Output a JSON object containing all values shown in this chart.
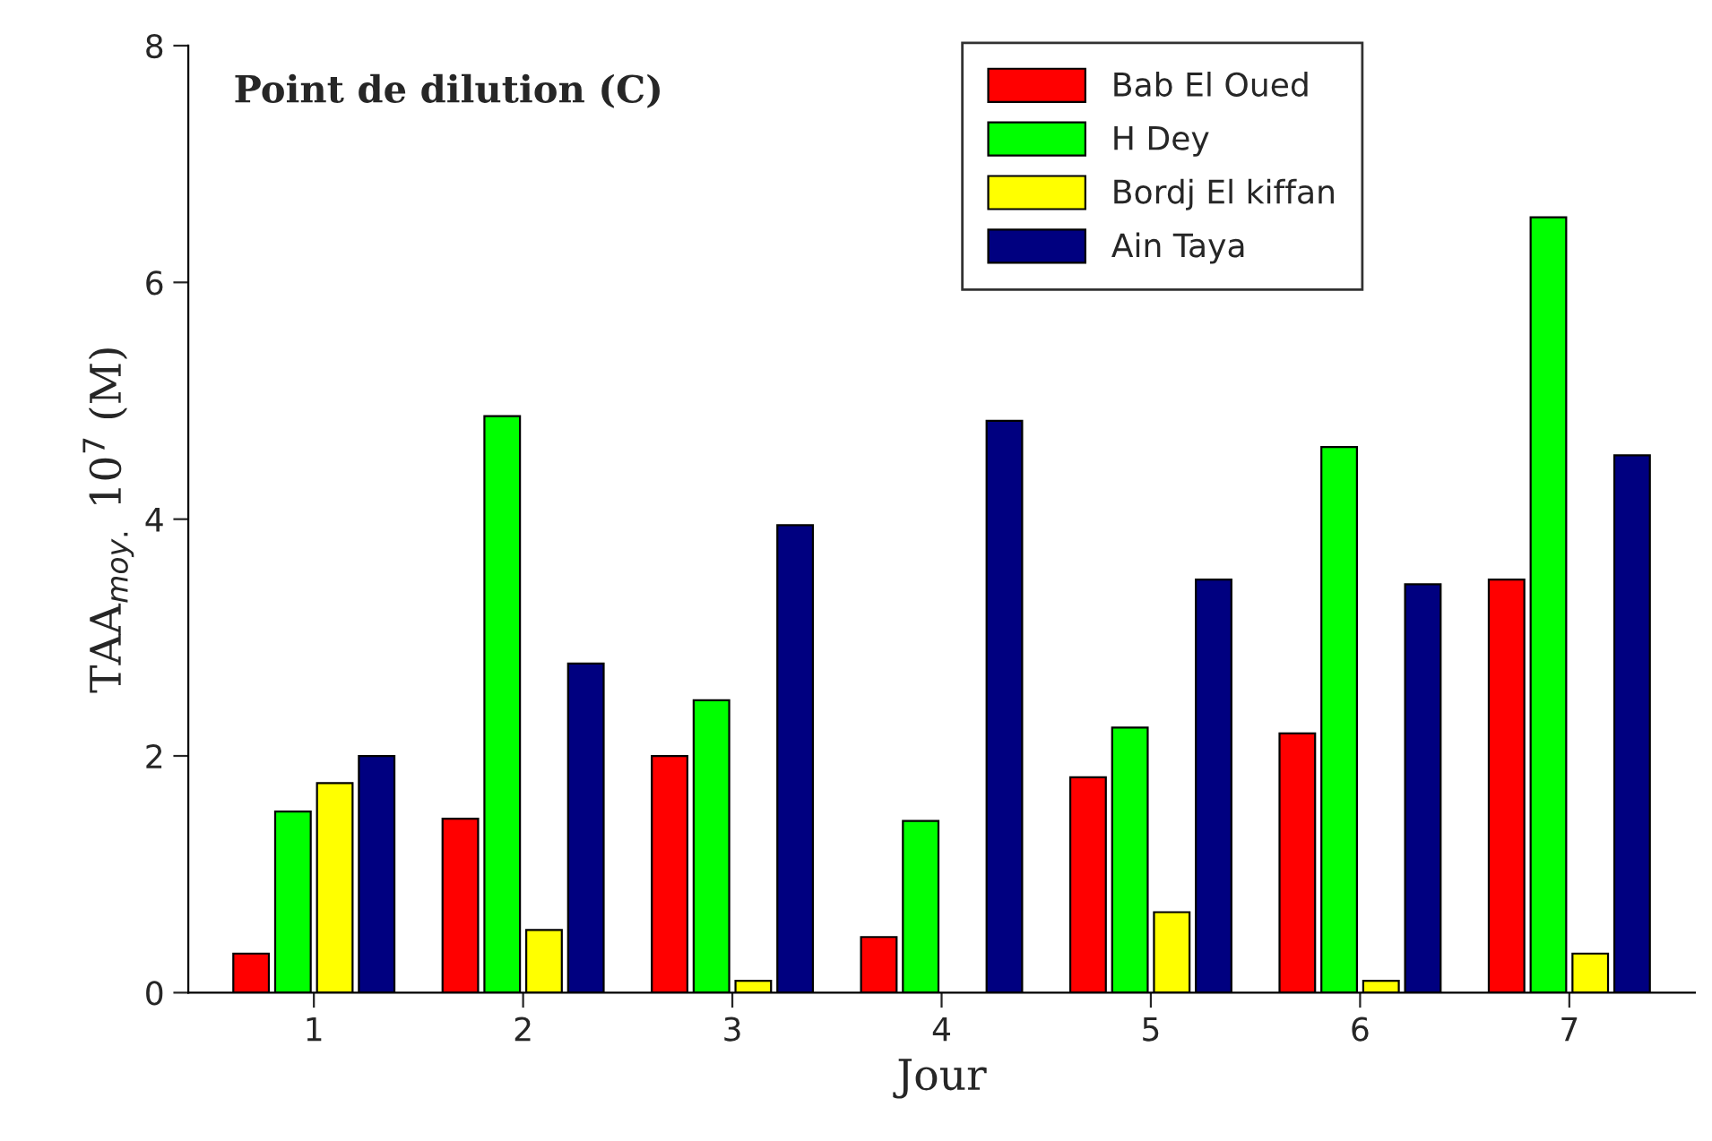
{
  "chart_data": {
    "type": "bar",
    "title": "Point de dilution (C)",
    "xlabel": "Jour",
    "ylabel": "TAA$_{moy.}$ 10$^{7}$ (M)",
    "categories": [
      "1",
      "2",
      "3",
      "4",
      "5",
      "6",
      "7"
    ],
    "series": [
      {
        "name": "Bab El Oued",
        "color": "#ff0000",
        "values": [
          0.33,
          1.47,
          2.0,
          0.47,
          1.82,
          2.19,
          3.49
        ]
      },
      {
        "name": "H Dey",
        "color": "#00ff00",
        "values": [
          1.53,
          4.87,
          2.47,
          1.45,
          2.24,
          4.61,
          6.55
        ]
      },
      {
        "name": "Bordj El kiffan",
        "color": "#ffff00",
        "values": [
          1.77,
          0.53,
          0.1,
          null,
          0.68,
          0.1,
          0.33
        ]
      },
      {
        "name": "Ain Taya",
        "color": "#000080",
        "values": [
          2.0,
          2.78,
          3.95,
          4.83,
          3.49,
          3.45,
          4.54
        ]
      }
    ],
    "ylim": [
      0,
      8
    ],
    "yticks": [
      0,
      2,
      4,
      6,
      8
    ],
    "grid": false,
    "legend": "top right"
  }
}
